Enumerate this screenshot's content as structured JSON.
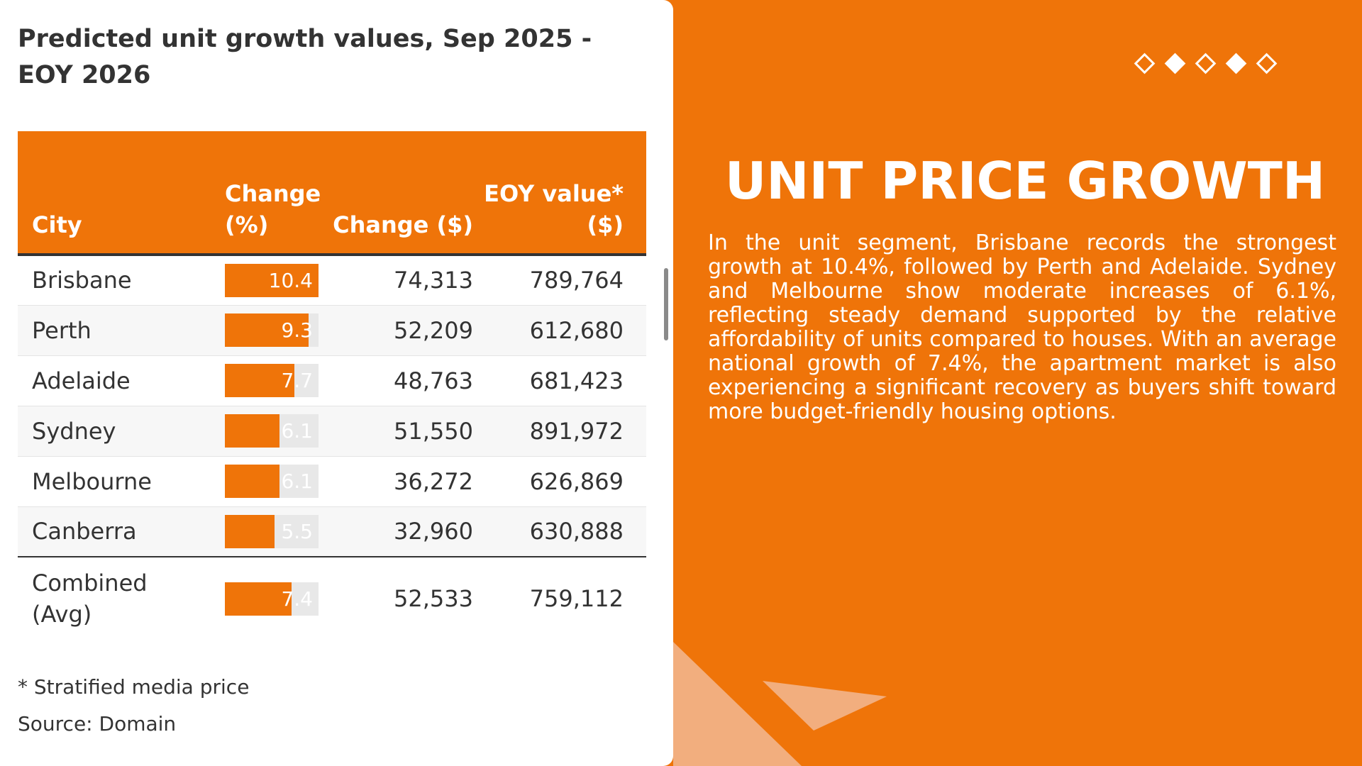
{
  "table_panel": {
    "title": "Predicted unit growth values, Sep 2025 - EOY 2026",
    "headers": {
      "city": "City",
      "change_pct": "Change (%)",
      "change_dollar": "Change ($)",
      "eoy_value": "EOY value* ($)"
    },
    "rows": [
      {
        "city": "Brisbane",
        "change_pct": 10.4,
        "change_pct_label": "10.4",
        "change_dollar": "74,313",
        "eoy_value": "789,764"
      },
      {
        "city": "Perth",
        "change_pct": 9.3,
        "change_pct_label": "9.3",
        "change_dollar": "52,209",
        "eoy_value": "612,680"
      },
      {
        "city": "Adelaide",
        "change_pct": 7.7,
        "change_pct_label": "7.7",
        "change_dollar": "48,763",
        "eoy_value": "681,423"
      },
      {
        "city": "Sydney",
        "change_pct": 6.1,
        "change_pct_label": "6.1",
        "change_dollar": "51,550",
        "eoy_value": "891,972"
      },
      {
        "city": "Melbourne",
        "change_pct": 6.1,
        "change_pct_label": "6.1",
        "change_dollar": "36,272",
        "eoy_value": "626,869"
      },
      {
        "city": "Canberra",
        "change_pct": 5.5,
        "change_pct_label": "5.5",
        "change_dollar": "32,960",
        "eoy_value": "630,888"
      }
    ],
    "total": {
      "city": "Combined (Avg)",
      "change_pct": 7.4,
      "change_pct_label": "7.4",
      "change_dollar": "52,533",
      "eoy_value": "759,112"
    },
    "bar_max_pct": 10.4,
    "footnote": "* Stratified media price",
    "source": "Source: Domain"
  },
  "info_panel": {
    "heading": "UNIT PRICE GROWTH",
    "paragraph": "In the unit segment, Brisbane records the strongest growth at 10.4%, followed by Perth and Adelaide. Sydney and Melbourne show moderate increases of 6.1%, reflecting steady demand supported by the relative affordability of units compared to houses. With an average national growth of 7.4%, the apartment market is also experiencing a significant recovery as buyers shift toward more budget-friendly housing options."
  },
  "decoration": {
    "diamonds": [
      "outline",
      "filled",
      "outline",
      "filled",
      "outline"
    ]
  },
  "colors": {
    "accent": "#EF7409",
    "text_dark": "#333333",
    "bar_track": "#E8E8E8",
    "light_shape": "#F2AE7E",
    "white": "#FFFFFF"
  }
}
